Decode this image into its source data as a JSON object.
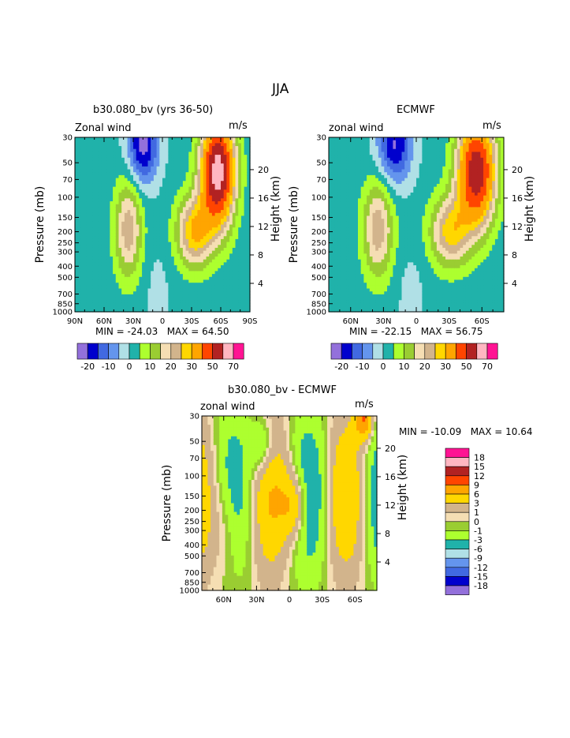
{
  "page": {
    "title": "JJA"
  },
  "colors": {
    "fill_palette": [
      "#9370DB",
      "#0000CD",
      "#4169E1",
      "#6495ED",
      "#B0E0E6",
      "#20B2AA",
      "#ADFF2F",
      "#9ACD32",
      "#F5DEB3",
      "#D2B48C",
      "#FFD700",
      "#FFA500",
      "#FF4500",
      "#B22222",
      "#FFB6C1",
      "#FF1493"
    ],
    "diff_palette": [
      "#FF1493",
      "#FFB6C1",
      "#B22222",
      "#FF4500",
      "#FFA500",
      "#FFD700",
      "#D2B48C",
      "#F5DEB3",
      "#9ACD32",
      "#ADFF2F",
      "#20B2AA",
      "#B0E0E6",
      "#6495ED",
      "#4169E1",
      "#0000CD",
      "#9370DB"
    ]
  },
  "chart_data": [
    {
      "type": "heatmap",
      "title": "b30.080_bv (yrs 36-50)",
      "field_label": "Zonal wind",
      "units": "m/s",
      "xlabel": "",
      "ylabel": "Pressure (mb)",
      "y2label": "Height (km)",
      "x_ticks": [
        "90N",
        "60N",
        "30N",
        "0",
        "30S",
        "60S",
        "90S"
      ],
      "y_ticks": [
        "30",
        "50",
        "70",
        "100",
        "150",
        "200",
        "250",
        "300",
        "400",
        "500",
        "700",
        "850",
        "1000"
      ],
      "y2_ticks": [
        "20",
        "16",
        "12",
        "8",
        "4"
      ],
      "min_label": "MIN = -24.03",
      "max_label": "MAX =  64.50",
      "min": -24.03,
      "max": 64.5,
      "colorbar_labels": [
        "-20",
        "-10",
        "0",
        "10",
        "20",
        "30",
        "50",
        "70"
      ],
      "jets": [
        {
          "kind": "max",
          "lat": -57,
          "p": 60,
          "value": 64.5
        },
        {
          "kind": "max",
          "lat": 35,
          "p": 190,
          "value": 22
        },
        {
          "kind": "min",
          "lat": 20,
          "p": 35,
          "value": -24.03
        }
      ]
    },
    {
      "type": "heatmap",
      "title": "ECMWF",
      "field_label": "zonal wind",
      "units": "m/s",
      "xlabel": "",
      "ylabel": "Pressure (mb)",
      "y2label": "Height (km)",
      "x_ticks": [
        "60N",
        "30N",
        "0",
        "30S",
        "60S"
      ],
      "y_ticks": [
        "30",
        "50",
        "70",
        "100",
        "150",
        "200",
        "250",
        "300",
        "400",
        "500",
        "700",
        "850",
        "1000"
      ],
      "y2_ticks": [
        "20",
        "16",
        "12",
        "8",
        "4"
      ],
      "min_label": "MIN = -22.15",
      "max_label": "MAX =  56.75",
      "min": -22.15,
      "max": 56.75,
      "colorbar_labels": [
        "-20",
        "-10",
        "0",
        "10",
        "20",
        "30",
        "50",
        "70"
      ],
      "jets": [
        {
          "kind": "max",
          "lat": -55,
          "p": 60,
          "value": 56.75
        },
        {
          "kind": "max",
          "lat": 35,
          "p": 190,
          "value": 22
        },
        {
          "kind": "min",
          "lat": 20,
          "p": 35,
          "value": -22.15
        }
      ]
    },
    {
      "type": "heatmap",
      "title": "b30.080_bv - ECMWF",
      "field_label": "zonal wind",
      "units": "m/s",
      "xlabel": "",
      "ylabel": "Pressure (mb)",
      "y2label": "Height (km)",
      "x_ticks": [
        "60N",
        "30N",
        "0",
        "30S",
        "60S"
      ],
      "y_ticks": [
        "30",
        "50",
        "70",
        "100",
        "150",
        "200",
        "250",
        "300",
        "400",
        "500",
        "700",
        "850",
        "1000"
      ],
      "y2_ticks": [
        "20",
        "16",
        "12",
        "8",
        "4"
      ],
      "min_label": "MIN = -10.09",
      "max_label": "MAX =  10.64",
      "min": -10.09,
      "max": 10.64,
      "colorbar_labels": [
        "18",
        "15",
        "12",
        "9",
        "6",
        "3",
        "1",
        "0",
        "-1",
        "-3",
        "-6",
        "-9",
        "-12",
        "-15",
        "-18"
      ]
    }
  ]
}
